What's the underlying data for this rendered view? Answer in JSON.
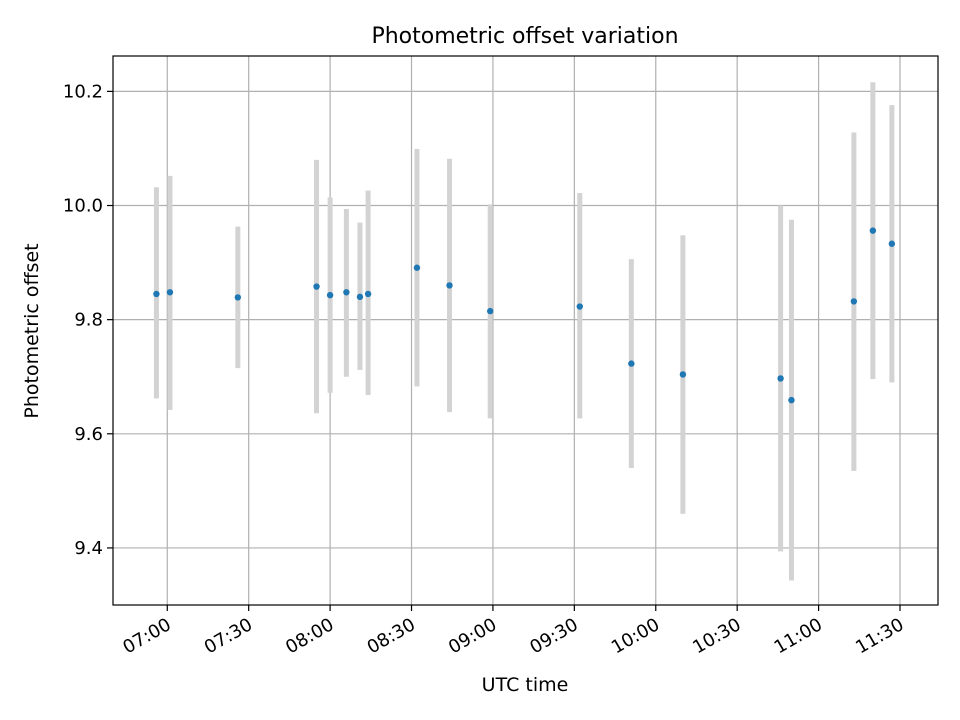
{
  "chart_data": {
    "type": "scatter",
    "title": "Photometric offset variation",
    "xlabel": "UTC time",
    "ylabel": "Photometric offset",
    "grid": true,
    "legend": "none",
    "xlim": [
      "06:40",
      "11:44"
    ],
    "ylim": [
      9.3,
      10.262
    ],
    "xticks": [
      "07:00",
      "07:30",
      "08:00",
      "08:30",
      "09:00",
      "09:30",
      "10:00",
      "10:30",
      "11:00",
      "11:30"
    ],
    "yticks": [
      "9.4",
      "9.6",
      "9.8",
      "10.0",
      "10.2"
    ],
    "points": [
      {
        "x": "06:56",
        "y": 9.845,
        "ylow": 9.662,
        "yhigh": 10.032
      },
      {
        "x": "07:01",
        "y": 9.848,
        "ylow": 9.642,
        "yhigh": 10.052
      },
      {
        "x": "07:26",
        "y": 9.839,
        "ylow": 9.715,
        "yhigh": 9.963
      },
      {
        "x": "07:55",
        "y": 9.858,
        "ylow": 9.636,
        "yhigh": 10.08
      },
      {
        "x": "08:00",
        "y": 9.843,
        "ylow": 9.672,
        "yhigh": 10.014
      },
      {
        "x": "08:06",
        "y": 9.848,
        "ylow": 9.7,
        "yhigh": 9.994
      },
      {
        "x": "08:11",
        "y": 9.84,
        "ylow": 9.712,
        "yhigh": 9.97
      },
      {
        "x": "08:14",
        "y": 9.845,
        "ylow": 9.668,
        "yhigh": 10.026
      },
      {
        "x": "08:32",
        "y": 9.891,
        "ylow": 9.683,
        "yhigh": 10.099
      },
      {
        "x": "08:44",
        "y": 9.86,
        "ylow": 9.638,
        "yhigh": 10.082
      },
      {
        "x": "08:59",
        "y": 9.815,
        "ylow": 9.627,
        "yhigh": 10.002
      },
      {
        "x": "09:32",
        "y": 9.823,
        "ylow": 9.627,
        "yhigh": 10.022
      },
      {
        "x": "09:51",
        "y": 9.723,
        "ylow": 9.54,
        "yhigh": 9.906
      },
      {
        "x": "10:10",
        "y": 9.704,
        "ylow": 9.46,
        "yhigh": 9.948
      },
      {
        "x": "10:46",
        "y": 9.697,
        "ylow": 9.394,
        "yhigh": 10.0
      },
      {
        "x": "10:50",
        "y": 9.659,
        "ylow": 9.343,
        "yhigh": 9.975
      },
      {
        "x": "11:13",
        "y": 9.832,
        "ylow": 9.535,
        "yhigh": 10.128
      },
      {
        "x": "11:20",
        "y": 9.956,
        "ylow": 9.696,
        "yhigh": 10.216
      },
      {
        "x": "11:27",
        "y": 9.933,
        "ylow": 9.69,
        "yhigh": 10.176
      }
    ],
    "colors": {
      "marker": "#1f77b4",
      "errorbar": "#d3d3d3",
      "grid": "#b0b0b0",
      "axes": "#000000"
    }
  }
}
